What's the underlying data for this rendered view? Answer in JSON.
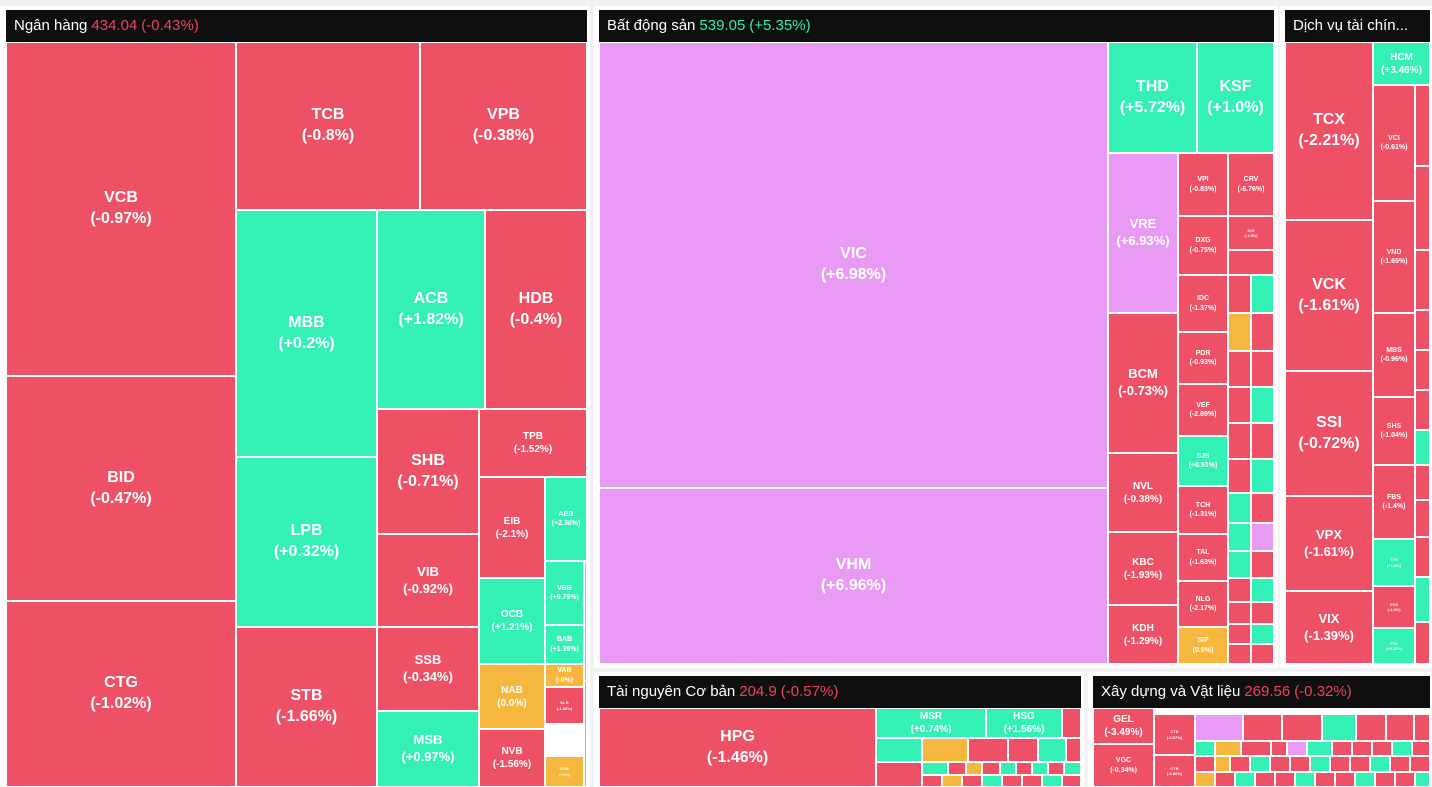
{
  "colors": {
    "down": "#ee5065",
    "up": "#33f1b5",
    "ceiling": "#e99af5",
    "reference": "#f5b73d",
    "header_bg": "#0f0f0f"
  },
  "sectors": {
    "banking": {
      "name": "Ngân hàng",
      "value": "434.04",
      "change": "(-0.43%)"
    },
    "realestate": {
      "name": "Bất động sản",
      "value": "539.05",
      "change": "(+5.35%)"
    },
    "finance": {
      "name": "Dịch vụ tài chín..."
    },
    "resources": {
      "name": "Tài nguyên Cơ bản",
      "value": "204.9",
      "change": "(-0.57%)"
    },
    "construction": {
      "name": "Xây dựng và Vật liệu",
      "value": "269.56",
      "change": "(-0.32%)"
    }
  },
  "chart_data": {
    "type": "heatmap",
    "groups": [
      {
        "sector": "Ngân hàng",
        "index": "434.04",
        "change_pct": -0.43,
        "stocks": [
          {
            "ticker": "VCB",
            "change": "(-0.97%)",
            "pct": -0.97
          },
          {
            "ticker": "BID",
            "change": "(-0.47%)",
            "pct": -0.47
          },
          {
            "ticker": "CTG",
            "change": "(-1.02%)",
            "pct": -1.02
          },
          {
            "ticker": "TCB",
            "change": "(-0.8%)",
            "pct": -0.8
          },
          {
            "ticker": "VPB",
            "change": "(-0.38%)",
            "pct": -0.38
          },
          {
            "ticker": "MBB",
            "change": "(+0.2%)",
            "pct": 0.2
          },
          {
            "ticker": "ACB",
            "change": "(+1.82%)",
            "pct": 1.82
          },
          {
            "ticker": "HDB",
            "change": "(-0.4%)",
            "pct": -0.4
          },
          {
            "ticker": "LPB",
            "change": "(+0.32%)",
            "pct": 0.32
          },
          {
            "ticker": "STB",
            "change": "(-1.66%)",
            "pct": -1.66
          },
          {
            "ticker": "SHB",
            "change": "(-0.71%)",
            "pct": -0.71
          },
          {
            "ticker": "TPB",
            "change": "(-1.52%)",
            "pct": -1.52
          },
          {
            "ticker": "VIB",
            "change": "(-0.92%)",
            "pct": -0.92
          },
          {
            "ticker": "EIB",
            "change": "(-2.1%)",
            "pct": -2.1
          },
          {
            "ticker": "ABB",
            "change": "(+2.38%)",
            "pct": 2.38
          },
          {
            "ticker": "SSB",
            "change": "(-0.34%)",
            "pct": -0.34
          },
          {
            "ticker": "OCB",
            "change": "(+1.21%)",
            "pct": 1.21
          },
          {
            "ticker": "VBB",
            "change": "(+0.76%)",
            "pct": 0.76
          },
          {
            "ticker": "BAB",
            "change": "(+1.39%)",
            "pct": 1.39
          },
          {
            "ticker": "NAB",
            "change": "(0.0%)",
            "pct": 0.0
          },
          {
            "ticker": "VAB",
            "change": "(-0%)",
            "pct": 0.0
          },
          {
            "ticker": "MSB",
            "change": "(+0.97%)",
            "pct": 0.97
          },
          {
            "ticker": "NVB",
            "change": "(-1.56%)",
            "pct": -1.56
          },
          {
            "ticker": "KLB",
            "change": "(-1.85%)",
            "pct": -1.85
          },
          {
            "ticker": "SGB",
            "change": "(+0%)",
            "pct": 0.0
          }
        ]
      },
      {
        "sector": "Bất động sản",
        "index": "539.05",
        "change_pct": 5.35,
        "stocks": [
          {
            "ticker": "VIC",
            "change": "(+6.98%)",
            "pct": 6.98
          },
          {
            "ticker": "VHM",
            "change": "(+6.96%)",
            "pct": 6.96
          },
          {
            "ticker": "THD",
            "change": "(+5.72%)",
            "pct": 5.72
          },
          {
            "ticker": "KSF",
            "change": "(+1.0%)",
            "pct": 1.0
          },
          {
            "ticker": "VRE",
            "change": "(+6.93%)",
            "pct": 6.93
          },
          {
            "ticker": "BCM",
            "change": "(-0.73%)",
            "pct": -0.73
          },
          {
            "ticker": "NVL",
            "change": "(-0.38%)",
            "pct": -0.38
          },
          {
            "ticker": "KBC",
            "change": "(-1.93%)",
            "pct": -1.93
          },
          {
            "ticker": "KDH",
            "change": "(-1.29%)",
            "pct": -1.29
          },
          {
            "ticker": "VPI",
            "change": "(-0.83%)",
            "pct": -0.83
          },
          {
            "ticker": "CRV",
            "change": "(-6.76%)",
            "pct": -6.76
          },
          {
            "ticker": "DXG",
            "change": "(-0.75%)",
            "pct": -0.75
          },
          {
            "ticker": "DIG",
            "change": "(-1.5%)",
            "pct": -1.5
          },
          {
            "ticker": "IDC",
            "change": "(-1.37%)",
            "pct": -1.37
          },
          {
            "ticker": "PDR",
            "change": "(-0.93%)",
            "pct": -0.93
          },
          {
            "ticker": "VEF",
            "change": "(-2.89%)",
            "pct": -2.89
          },
          {
            "ticker": "SJS",
            "change": "(+0.51%)",
            "pct": 0.51
          },
          {
            "ticker": "TCH",
            "change": "(-1.31%)",
            "pct": -1.31
          },
          {
            "ticker": "TAL",
            "change": "(-1.63%)",
            "pct": -1.63
          },
          {
            "ticker": "NLG",
            "change": "(-2.17%)",
            "pct": -2.17
          },
          {
            "ticker": "SIP",
            "change": "(0.0%)",
            "pct": 0.0
          }
        ]
      },
      {
        "sector": "Dịch vụ tài chín...",
        "stocks": [
          {
            "ticker": "HCM",
            "change": "(+3.46%)",
            "pct": 3.46
          },
          {
            "ticker": "TCX",
            "change": "(-2.21%)",
            "pct": -2.21
          },
          {
            "ticker": "VCI",
            "change": "(-0.61%)",
            "pct": -0.61
          },
          {
            "ticker": "VCK",
            "change": "(-1.61%)",
            "pct": -1.61
          },
          {
            "ticker": "VND",
            "change": "(-1.65%)",
            "pct": -1.65
          },
          {
            "ticker": "SSI",
            "change": "(-0.72%)",
            "pct": -0.72
          },
          {
            "ticker": "MBS",
            "change": "(-0.96%)",
            "pct": -0.96
          },
          {
            "ticker": "SHS",
            "change": "(-1.04%)",
            "pct": -1.04
          },
          {
            "ticker": "VPX",
            "change": "(-1.61%)",
            "pct": -1.61
          },
          {
            "ticker": "FBS",
            "change": "(-1.4%)",
            "pct": -1.4
          },
          {
            "ticker": "TVS",
            "change": "(+1.5%)",
            "pct": 1.5
          },
          {
            "ticker": "VIX",
            "change": "(-1.39%)",
            "pct": -1.39
          },
          {
            "ticker": "EVS",
            "change": "(-1.6%)",
            "pct": -1.6
          },
          {
            "ticker": "FTS",
            "change": "(+0.18%)",
            "pct": 0.18
          }
        ]
      },
      {
        "sector": "Tài nguyên Cơ bản",
        "index": "204.9",
        "change_pct": -0.57,
        "stocks": [
          {
            "ticker": "HPG",
            "change": "(-1.46%)",
            "pct": -1.46
          },
          {
            "ticker": "MSR",
            "change": "(+0.74%)",
            "pct": 0.74
          },
          {
            "ticker": "HSG",
            "change": "(+1.56%)",
            "pct": 1.56
          }
        ]
      },
      {
        "sector": "Xây dựng và Vật liệu",
        "index": "269.56",
        "change_pct": -0.32,
        "stocks": [
          {
            "ticker": "GEL",
            "change": "(-3.49%)",
            "pct": -3.49
          },
          {
            "ticker": "VGC",
            "change": "(-0.34%)",
            "pct": -0.34
          },
          {
            "ticker": "CTD",
            "change": "(-0.67%)",
            "pct": -0.67
          },
          {
            "ticker": "CTR",
            "change": "(-0.82%)",
            "pct": -0.82
          }
        ]
      }
    ]
  }
}
